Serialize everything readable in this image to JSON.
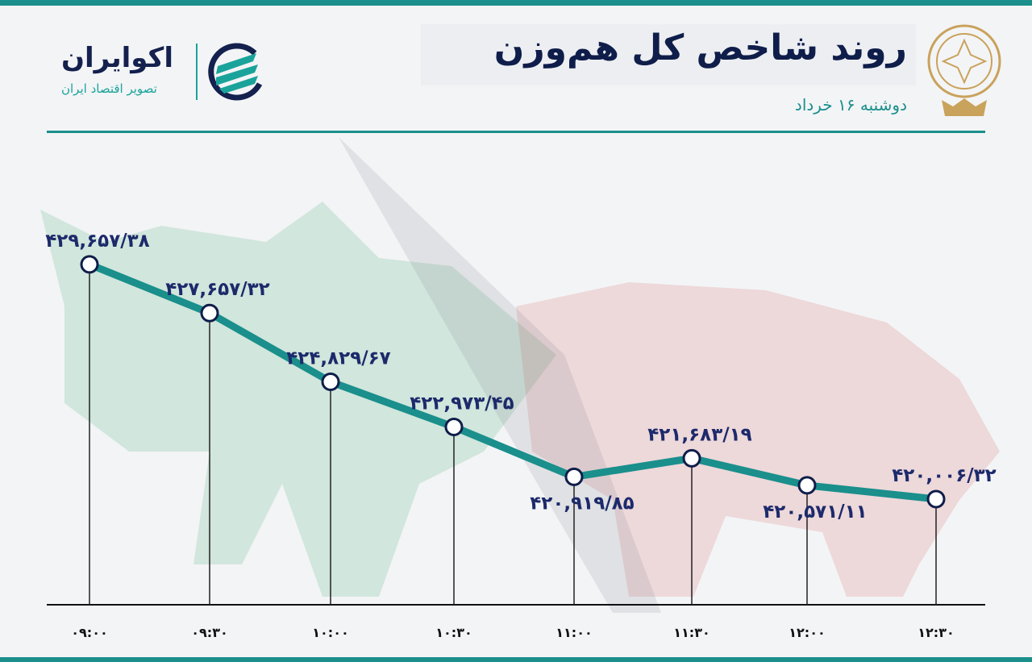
{
  "header": {
    "title": "روند شاخص کل هم‌وزن",
    "date": "دوشنبه ۱۶ خرداد"
  },
  "logo": {
    "name": "اکوایران",
    "tagline": "تصویر اقتصاد ایران"
  },
  "colors": {
    "line": "#1a8f8c",
    "label": "#1c2a6b",
    "accent": "#1a8f8c"
  },
  "chart_data": {
    "type": "line",
    "categories": [
      "۰۹:۰۰",
      "۰۹:۳۰",
      "۱۰:۰۰",
      "۱۰:۳۰",
      "۱۱:۰۰",
      "۱۱:۳۰",
      "۱۲:۰۰",
      "۱۲:۳۰"
    ],
    "values": [
      429657.38,
      427657.32,
      424829.67,
      422973.45,
      420919.85,
      421683.19,
      420571.11,
      420006.32
    ],
    "labels": [
      "۴۲۹,۶۵۷/۳۸",
      "۴۲۷,۶۵۷/۳۲",
      "۴۲۴,۸۲۹/۶۷",
      "۴۲۲,۹۷۳/۴۵",
      "۴۲۰,۹۱۹/۸۵",
      "۴۲۱,۶۸۳/۱۹",
      "۴۲۰,۵۷۱/۱۱",
      "۴۲۰,۰۰۶/۳۲"
    ],
    "title": "روند شاخص کل هم‌وزن",
    "xlabel": "",
    "ylabel": "",
    "grid": false
  }
}
